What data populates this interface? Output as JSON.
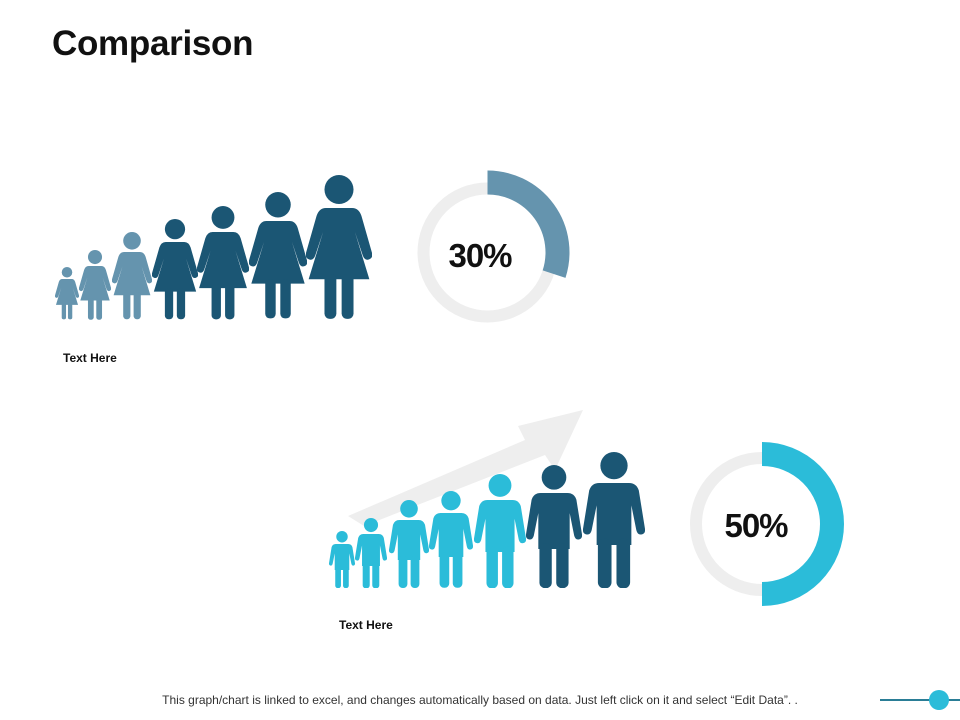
{
  "title": "Comparison",
  "footer_note": "This graph/chart is linked to excel, and changes automatically based on data.  Just left click on it and select “Edit Data”. .",
  "colors": {
    "dark_teal": "#1b5674",
    "grey_blue": "#6594ae",
    "cyan": "#2bbcd9",
    "track": "#eeeeee",
    "arrow": "#eeeeee"
  },
  "icons": [
    "female-person-icon",
    "male-person-icon",
    "growth-arrow-icon"
  ],
  "chart_data": [
    {
      "type": "pie",
      "variant": "donut",
      "values": [
        30,
        70
      ],
      "value_label": "30%",
      "color": "#6594ae",
      "caption": "Text Here",
      "people_icon": "female-person-icon",
      "people_count": 7,
      "people_colors": [
        "#6594ae",
        "#6594ae",
        "#6594ae",
        "#1b5674",
        "#1b5674",
        "#1b5674",
        "#1b5674"
      ]
    },
    {
      "type": "pie",
      "variant": "donut",
      "values": [
        50,
        50
      ],
      "value_label": "50%",
      "color": "#2bbcd9",
      "caption": "Text Here",
      "people_icon": "male-person-icon",
      "people_count": 7,
      "people_colors": [
        "#2bbcd9",
        "#2bbcd9",
        "#2bbcd9",
        "#2bbcd9",
        "#2bbcd9",
        "#1b5674",
        "#1b5674"
      ]
    }
  ]
}
